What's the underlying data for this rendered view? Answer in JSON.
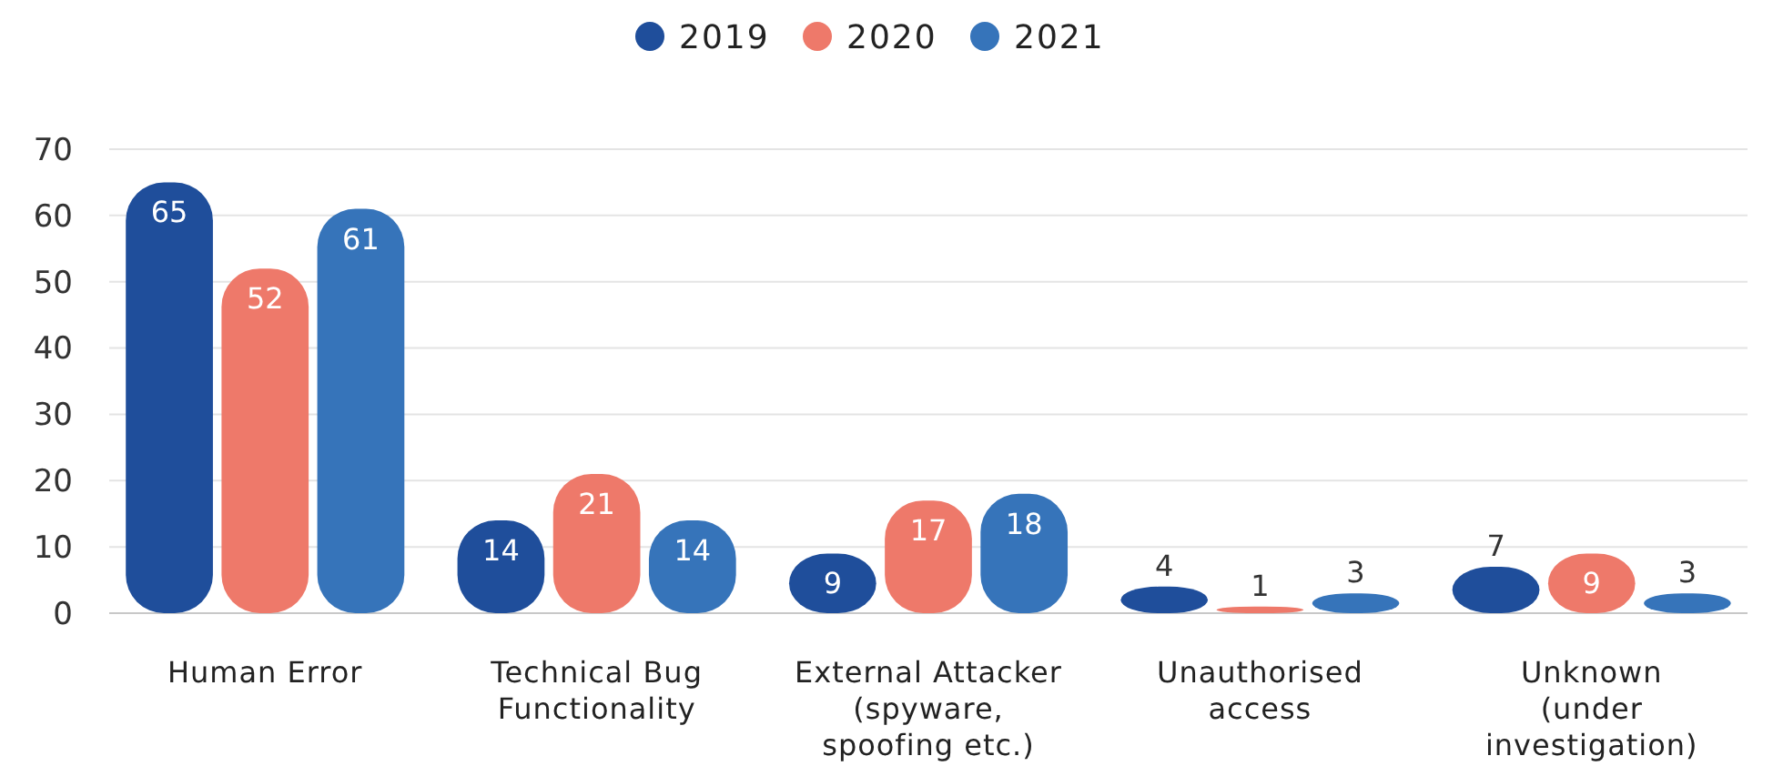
{
  "chart_data": {
    "type": "bar",
    "categories": [
      "Human Error",
      "Technical Bug\nFunctionality",
      "External Attacker\n(spyware,\nspoofing etc.)",
      "Unauthorised\naccess",
      "Unknown\n(under\ninvestigation)"
    ],
    "series": [
      {
        "name": "2019",
        "color": "#1f4e9b",
        "values": [
          65,
          14,
          9,
          4,
          7
        ]
      },
      {
        "name": "2020",
        "color": "#ee796a",
        "values": [
          52,
          21,
          17,
          1,
          9
        ]
      },
      {
        "name": "2021",
        "color": "#3674ba",
        "values": [
          61,
          14,
          18,
          3,
          3
        ]
      }
    ],
    "ylim": [
      0,
      70
    ],
    "yticks": [
      0,
      10,
      20,
      30,
      40,
      50,
      60,
      70
    ],
    "grid": "y",
    "legend": "top",
    "data_labels": true
  }
}
